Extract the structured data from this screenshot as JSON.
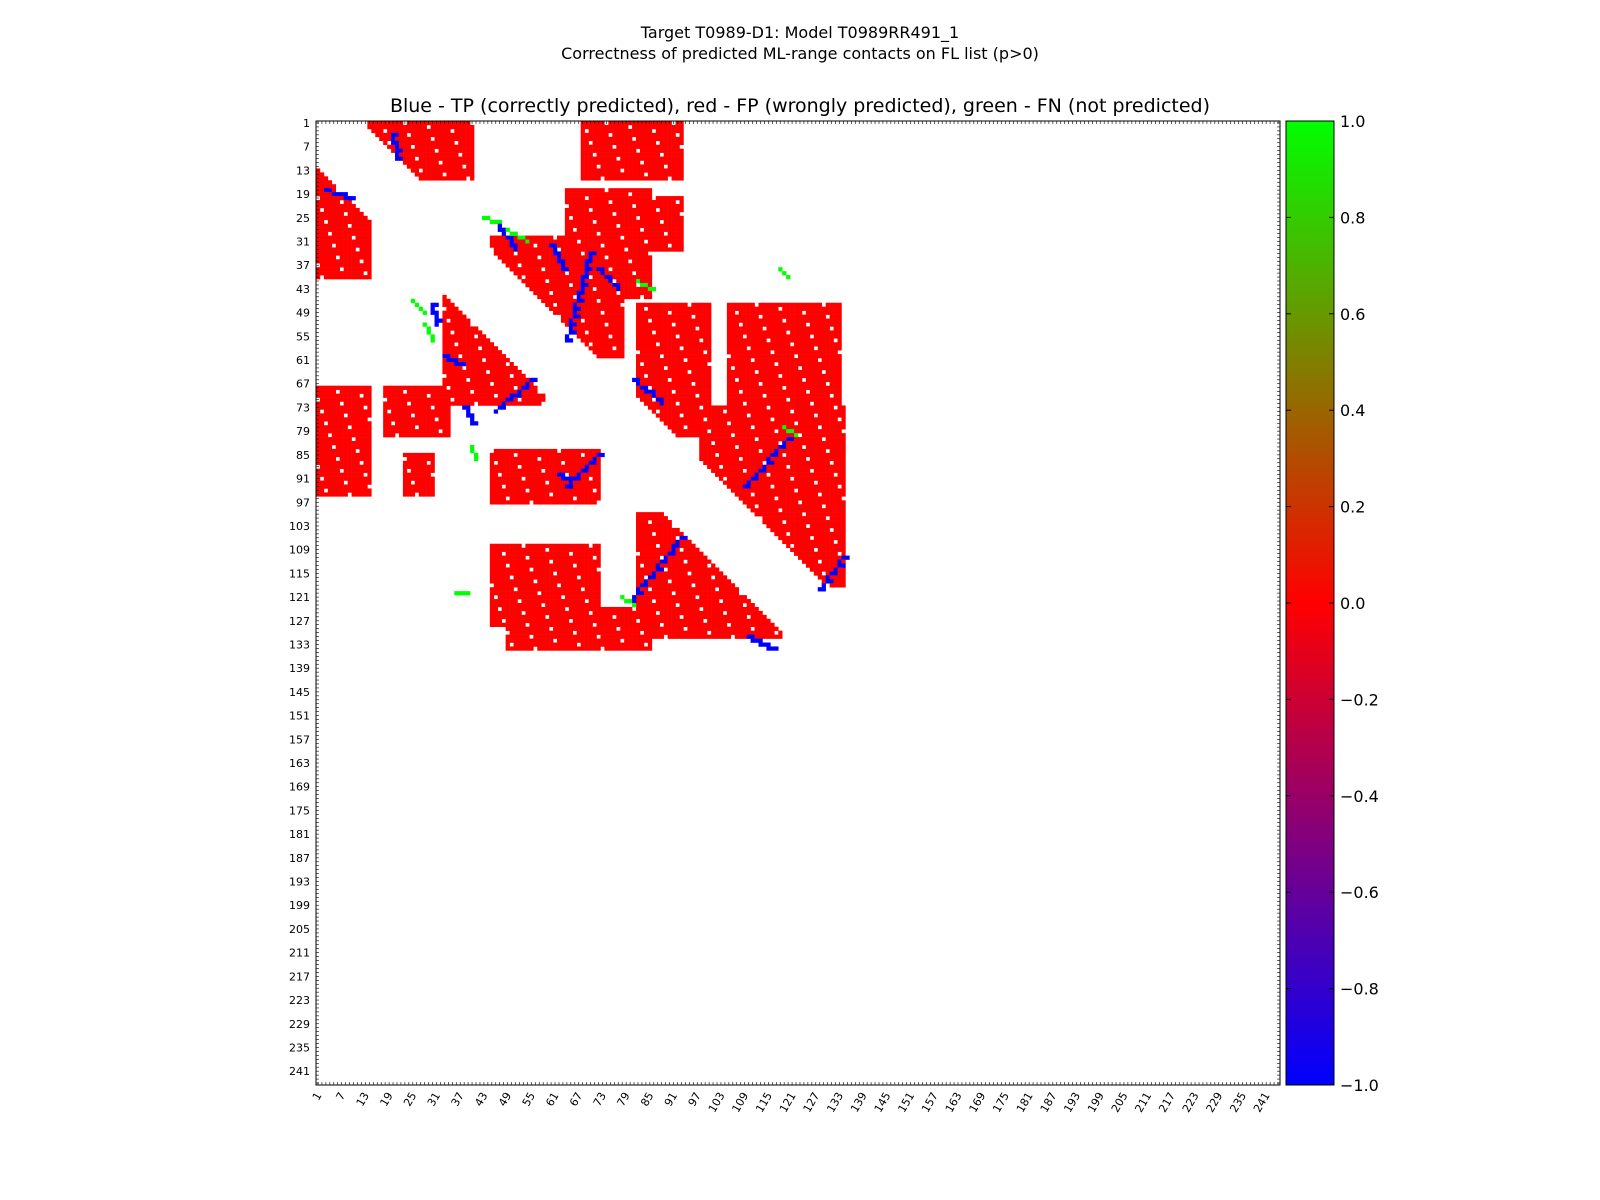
{
  "figure": {
    "suptitle_line1": "Target T0989-D1: Model T0989RR491_1",
    "suptitle_line2": "Correctness of predicted ML-range contacts on FL list (p>0)"
  },
  "chart_data": {
    "type": "heatmap",
    "title": "Blue - TP (correctly predicted), red - FP (wrongly predicted), green - FN (not predicted)",
    "xlabel": "",
    "ylabel": "",
    "n_residues": 244,
    "xlim": [
      1,
      244
    ],
    "ylim": [
      1,
      244
    ],
    "x_ticks": [
      "1",
      "7",
      "13",
      "19",
      "25",
      "31",
      "37",
      "43",
      "49",
      "55",
      "61",
      "67",
      "73",
      "79",
      "85",
      "91",
      "97",
      "103",
      "109",
      "115",
      "121",
      "127",
      "133",
      "139",
      "145",
      "151",
      "157",
      "163",
      "169",
      "175",
      "181",
      "187",
      "193",
      "199",
      "205",
      "211",
      "217",
      "223",
      "229",
      "235",
      "241"
    ],
    "y_ticks": [
      "1",
      "7",
      "13",
      "19",
      "25",
      "31",
      "37",
      "43",
      "49",
      "55",
      "61",
      "67",
      "73",
      "79",
      "85",
      "91",
      "97",
      "103",
      "109",
      "115",
      "121",
      "127",
      "133",
      "139",
      "145",
      "151",
      "157",
      "163",
      "169",
      "175",
      "181",
      "187",
      "193",
      "199",
      "205",
      "211",
      "217",
      "223",
      "229",
      "235",
      "241"
    ],
    "colorbar": {
      "min": -1.0,
      "max": 1.0,
      "ticks": [
        "1.0",
        "0.8",
        "0.6",
        "0.4",
        "0.2",
        "0.0",
        "−0.2",
        "−0.4",
        "−0.6",
        "−0.8",
        "−1.0"
      ],
      "colors": [
        "#0000ff",
        "#ff0000",
        "#00ff00"
      ]
    },
    "categories": {
      "TP": -1.0,
      "FP": 0.0,
      "FN": 1.0
    },
    "fp_regions": [
      {
        "rows": [
          1,
          15
        ],
        "cols": [
          14,
          40
        ]
      },
      {
        "rows": [
          1,
          15
        ],
        "cols": [
          68,
          93
        ]
      },
      {
        "rows": [
          12,
          40
        ],
        "cols": [
          1,
          14
        ]
      },
      {
        "rows": [
          18,
          45
        ],
        "cols": [
          64,
          85
        ]
      },
      {
        "rows": [
          20,
          33
        ],
        "cols": [
          79,
          93
        ]
      },
      {
        "rows": [
          30,
          60
        ],
        "cols": [
          45,
          78
        ]
      },
      {
        "rows": [
          45,
          72
        ],
        "cols": [
          33,
          58
        ]
      },
      {
        "rows": [
          47,
          80
        ],
        "cols": [
          82,
          100
        ]
      },
      {
        "rows": [
          47,
          72
        ],
        "cols": [
          105,
          133
        ]
      },
      {
        "rows": [
          68,
          80
        ],
        "cols": [
          18,
          34
        ]
      },
      {
        "rows": [
          68,
          95
        ],
        "cols": [
          1,
          14
        ]
      },
      {
        "rows": [
          73,
          118
        ],
        "cols": [
          98,
          134
        ]
      },
      {
        "rows": [
          84,
          97
        ],
        "cols": [
          45,
          72
        ]
      },
      {
        "rows": [
          85,
          95
        ],
        "cols": [
          23,
          30
        ]
      },
      {
        "rows": [
          100,
          131
        ],
        "cols": [
          82,
          118
        ]
      },
      {
        "rows": [
          108,
          128
        ],
        "cols": [
          45,
          72
        ]
      },
      {
        "rows": [
          124,
          134
        ],
        "cols": [
          49,
          85
        ]
      }
    ],
    "tp_segments": [
      {
        "start": [
          4,
          20
        ],
        "end": [
          10,
          21
        ]
      },
      {
        "start": [
          18,
          3
        ],
        "end": [
          20,
          9
        ]
      },
      {
        "start": [
          26,
          46
        ],
        "end": [
          33,
          51
        ]
      },
      {
        "start": [
          32,
          60
        ],
        "end": [
          38,
          63
        ]
      },
      {
        "start": [
          34,
          70
        ],
        "end": [
          56,
          64
        ]
      },
      {
        "start": [
          38,
          72
        ],
        "end": [
          43,
          77
        ]
      },
      {
        "start": [
          47,
          30
        ],
        "end": [
          52,
          31
        ]
      },
      {
        "start": [
          60,
          33
        ],
        "end": [
          62,
          37
        ]
      },
      {
        "start": [
          66,
          81
        ],
        "end": [
          72,
          88
        ]
      },
      {
        "start": [
          66,
          55
        ],
        "end": [
          74,
          46
        ]
      },
      {
        "start": [
          73,
          38
        ],
        "end": [
          77,
          40
        ]
      },
      {
        "start": [
          85,
          72
        ],
        "end": [
          93,
          64
        ]
      },
      {
        "start": [
          90,
          62
        ],
        "end": [
          92,
          65
        ]
      },
      {
        "start": [
          81,
          120
        ],
        "end": [
          93,
          109
        ]
      },
      {
        "start": [
          106,
          93
        ],
        "end": [
          122,
          80
        ]
      },
      {
        "start": [
          111,
          134
        ],
        "end": [
          119,
          128
        ]
      },
      {
        "start": [
          131,
          110
        ],
        "end": [
          134,
          116
        ]
      }
    ],
    "fn_segments": [
      {
        "start": [
          25,
          43
        ],
        "end": [
          26,
          47
        ]
      },
      {
        "start": [
          28,
          49
        ],
        "end": [
          31,
          54
        ]
      },
      {
        "start": [
          41,
          82
        ],
        "end": [
          43,
          86
        ]
      },
      {
        "start": [
          46,
          25
        ],
        "end": [
          49,
          28
        ]
      },
      {
        "start": [
          52,
          28
        ],
        "end": [
          56,
          30
        ]
      },
      {
        "start": [
          78,
          119
        ],
        "end": [
          80,
          122
        ]
      },
      {
        "start": [
          83,
          40
        ],
        "end": [
          86,
          41
        ]
      },
      {
        "start": [
          121,
          78
        ],
        "end": [
          123,
          81
        ]
      },
      {
        "start": [
          120,
          36
        ],
        "end": [
          120,
          39
        ]
      },
      {
        "start": [
          38,
          118
        ],
        "end": [
          40,
          120
        ]
      }
    ]
  }
}
